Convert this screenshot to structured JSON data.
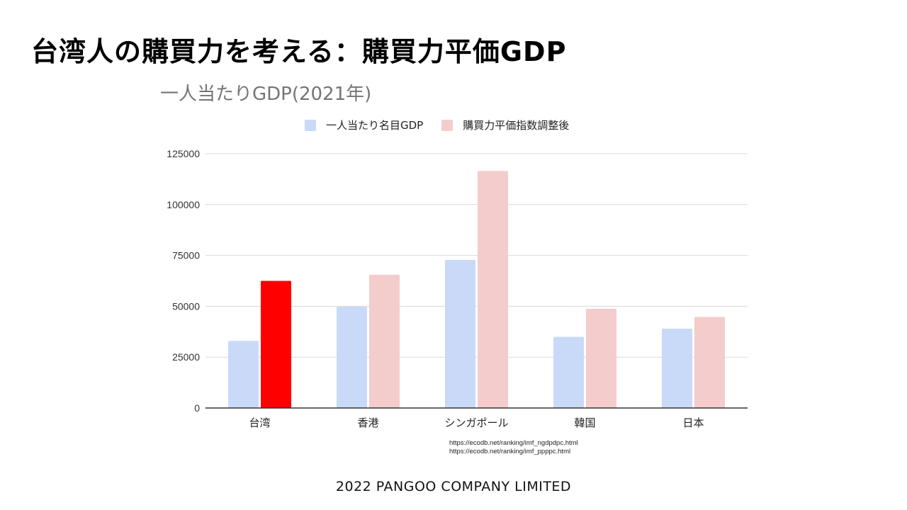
{
  "slide": {
    "title": "台湾人の購買力を考える：購買力平価GDP",
    "footer": "2022 PANGOO COMPANY LIMITED",
    "sources": [
      "https://ecodb.net/ranking/imf_ngdpdpc.html",
      "https://ecodb.net/ranking/imf_ppppc.html"
    ]
  },
  "chart_data": {
    "type": "bar",
    "title": "一人当たりGDP(2021年)",
    "categories": [
      "台湾",
      "香港",
      "シンガポール",
      "韓国",
      "日本"
    ],
    "series": [
      {
        "name": "一人当たり名目GDP",
        "color": "#c9daf8",
        "values": [
          33000,
          49800,
          72800,
          35000,
          39000
        ]
      },
      {
        "name": "購買力平価指数調整後",
        "color": "#f4cccc",
        "values": [
          62500,
          65500,
          116500,
          48800,
          44800
        ],
        "highlight": {
          "index": 0,
          "color": "#ff0000"
        }
      }
    ],
    "yticks": [
      0,
      25000,
      50000,
      75000,
      100000,
      125000
    ],
    "ylim": [
      0,
      125000
    ],
    "grid": true,
    "legend_position": "top"
  }
}
